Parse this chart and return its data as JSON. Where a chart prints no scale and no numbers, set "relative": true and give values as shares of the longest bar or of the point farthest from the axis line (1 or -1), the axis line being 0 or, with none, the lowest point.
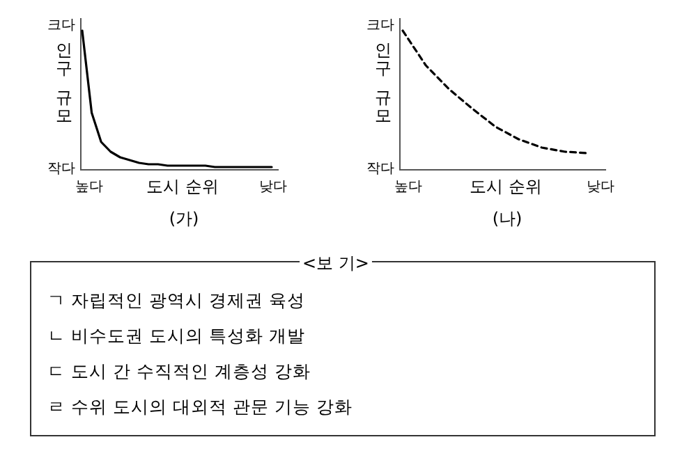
{
  "chart_data": [
    {
      "type": "line",
      "title": "(가)",
      "xlabel": "도시 순위",
      "ylabel": "인구 규모",
      "relative": true,
      "line_style": "solid",
      "color": "#000000",
      "annotations": [
        "크다",
        "작다",
        "높다",
        "낮다"
      ],
      "categories": [
        null,
        null,
        null,
        null,
        null,
        null,
        null,
        null,
        null,
        null,
        null,
        null,
        null,
        null,
        null,
        null,
        null,
        null,
        null,
        null,
        null
      ],
      "values": [
        1,
        0.41,
        0.2,
        0.13,
        0.09,
        0.07,
        0.05,
        0.04,
        0.04,
        0.03,
        0.03,
        0.03,
        0.03,
        0.03,
        0.02,
        0.02,
        0.02,
        0.02,
        0.02,
        0.02,
        0.02
      ]
    },
    {
      "type": "line",
      "title": "(나)",
      "xlabel": "도시 순위",
      "ylabel": "인구 규모",
      "relative": true,
      "line_style": "dashed",
      "color": "#000000",
      "annotations": [
        "크다",
        "작다",
        "높다",
        "낮다"
      ],
      "categories": [
        null,
        null,
        null,
        null,
        null,
        null,
        null,
        null,
        null
      ],
      "values": [
        1,
        0.75,
        0.58,
        0.44,
        0.31,
        0.22,
        0.16,
        0.13,
        0.12
      ]
    },
    {
      "type": "other",
      "title": "<보 기>",
      "annotations": [
        "ㄱ 자립적인 광역시 경제권 육성",
        "ㄴ 비수도권 도시의 특성화 개발",
        "ㄷ 도시 간 수직적인 계층성 강화",
        "ㄹ 수위 도시의 대외적 관문 기능 강화"
      ]
    }
  ]
}
